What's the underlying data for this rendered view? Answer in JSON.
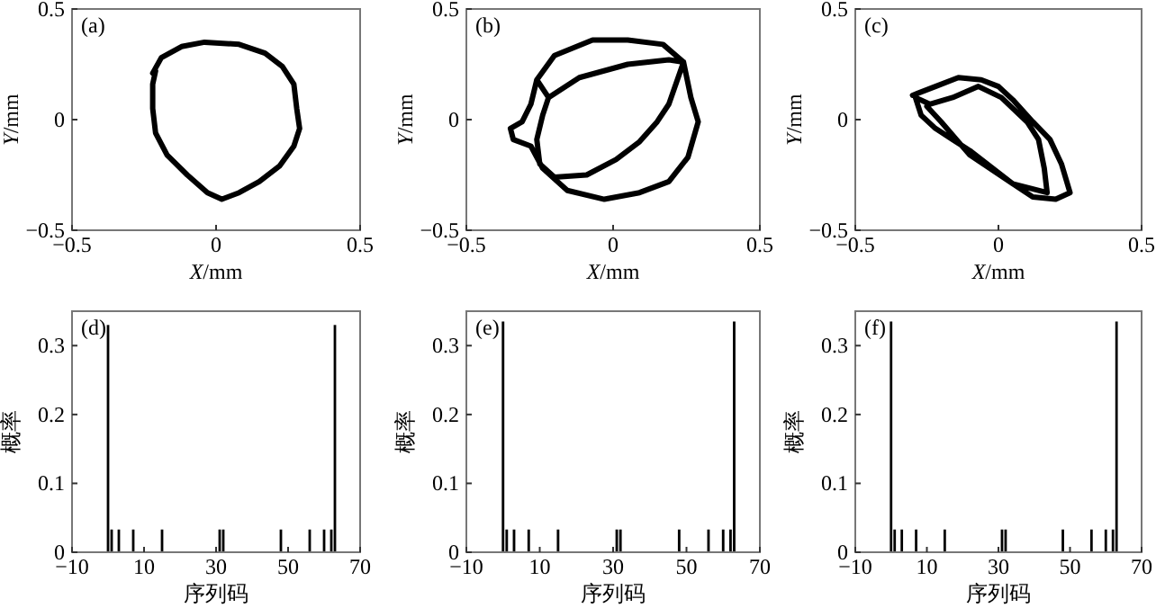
{
  "chart_data": [
    {
      "type": "line",
      "title": "(a)",
      "xlabel": "*X*/mm",
      "ylabel": "*Y*/mm",
      "xlim": [
        -0.5,
        0.5
      ],
      "ylim": [
        -0.5,
        0.5
      ],
      "xticks": [
        -0.5,
        0,
        0.5
      ],
      "yticks": [
        -0.5,
        0,
        0.5
      ],
      "series": [
        {
          "color": "#000000",
          "x": [
            -0.22,
            -0.19,
            -0.12,
            -0.04,
            0.08,
            0.17,
            0.23,
            0.27,
            0.28,
            0.29,
            0.27,
            0.22,
            0.15,
            0.08,
            0.02,
            -0.03,
            -0.1,
            -0.17,
            -0.21,
            -0.22,
            -0.22,
            -0.21
          ],
          "values": [
            0.21,
            0.28,
            0.33,
            0.35,
            0.34,
            0.3,
            0.24,
            0.16,
            0.05,
            -0.04,
            -0.12,
            -0.21,
            -0.28,
            -0.33,
            -0.36,
            -0.33,
            -0.25,
            -0.16,
            -0.06,
            0.05,
            0.16,
            0.22
          ]
        }
      ]
    },
    {
      "type": "line",
      "title": "(b)",
      "xlabel": "*X*/mm",
      "ylabel": "*Y*/mm",
      "xlim": [
        -0.5,
        0.5
      ],
      "ylim": [
        -0.5,
        0.5
      ],
      "xticks": [
        -0.5,
        0,
        0.5
      ],
      "yticks": [
        -0.5,
        0,
        0.5
      ],
      "series": [
        {
          "color": "#000000",
          "x": [
            -0.26,
            -0.2,
            -0.07,
            0.05,
            0.17,
            0.24,
            0.265,
            0.29,
            0.255,
            0.19,
            0.09,
            -0.03,
            -0.156,
            -0.24,
            -0.28,
            -0.34,
            -0.35,
            -0.31,
            -0.28,
            -0.26,
            -0.22,
            -0.115,
            0.05,
            0.19,
            0.24,
            0.19,
            0.15,
            0.09,
            0.01,
            -0.09,
            -0.2,
            -0.25,
            -0.26,
            -0.24,
            -0.22
          ],
          "values": [
            0.18,
            0.29,
            0.36,
            0.36,
            0.34,
            0.26,
            0.1,
            -0.01,
            -0.17,
            -0.28,
            -0.33,
            -0.36,
            -0.32,
            -0.22,
            -0.12,
            -0.09,
            -0.04,
            -0.01,
            0.07,
            0.18,
            0.1,
            0.19,
            0.25,
            0.27,
            0.26,
            0.07,
            -0.01,
            -0.1,
            -0.18,
            -0.25,
            -0.26,
            -0.2,
            -0.09,
            0.02,
            0.1
          ]
        }
      ]
    },
    {
      "type": "line",
      "title": "(c)",
      "xlabel": "*X*/mm",
      "ylabel": "*Y*/mm",
      "xlim": [
        -0.5,
        0.5
      ],
      "ylim": [
        -0.5,
        0.5
      ],
      "xticks": [
        -0.5,
        0,
        0.5
      ],
      "yticks": [
        -0.5,
        0,
        0.5
      ],
      "series": [
        {
          "color": "#000000",
          "x": [
            -0.3,
            -0.22,
            -0.14,
            -0.06,
            0,
            0.05,
            0.12,
            0.18,
            0.22,
            0.25,
            0.2,
            0.12,
            0.05,
            -0.03,
            -0.1,
            -0.16,
            -0.22,
            -0.27,
            -0.29,
            -0.24,
            -0.16,
            -0.07,
            0.01,
            0.1,
            0.14,
            0.16,
            0.17,
            0.05,
            -0.1,
            -0.2,
            -0.25
          ],
          "values": [
            0.11,
            0.15,
            0.19,
            0.18,
            0.15,
            0.09,
            -0.01,
            -0.09,
            -0.2,
            -0.33,
            -0.36,
            -0.35,
            -0.29,
            -0.21,
            -0.14,
            -0.09,
            -0.04,
            0.02,
            0.1,
            0.07,
            0.1,
            0.15,
            0.1,
            -0.01,
            -0.09,
            -0.22,
            -0.33,
            -0.29,
            -0.16,
            -0.01,
            0.06
          ]
        }
      ]
    },
    {
      "type": "bar",
      "title": "(d)",
      "xlabel": "序列码",
      "ylabel": "概率",
      "xlim": [
        -10,
        70
      ],
      "ylim": [
        0,
        0.35
      ],
      "xticks": [
        -10,
        10,
        30,
        50,
        70
      ],
      "yticks": [
        0,
        0.1,
        0.2,
        0.3
      ],
      "color": "#000000",
      "x": [
        0,
        1,
        3,
        7,
        15,
        31,
        32,
        48,
        56,
        60,
        62,
        63
      ],
      "values": [
        0.33,
        0.033,
        0.033,
        0.033,
        0.033,
        0.033,
        0.033,
        0.033,
        0.033,
        0.033,
        0.033,
        0.33
      ]
    },
    {
      "type": "bar",
      "title": "(e)",
      "xlabel": "序列码",
      "ylabel": "概率",
      "xlim": [
        -10,
        70
      ],
      "ylim": [
        0,
        0.35
      ],
      "xticks": [
        -10,
        10,
        30,
        50,
        70
      ],
      "yticks": [
        0,
        0.1,
        0.2,
        0.3
      ],
      "color": "#000000",
      "x": [
        0,
        1,
        3,
        7,
        15,
        31,
        32,
        48,
        56,
        60,
        62,
        63
      ],
      "values": [
        0.335,
        0.033,
        0.033,
        0.033,
        0.033,
        0.033,
        0.033,
        0.033,
        0.033,
        0.033,
        0.033,
        0.335
      ]
    },
    {
      "type": "bar",
      "title": "(f)",
      "xlabel": "序列码",
      "ylabel": "概率",
      "xlim": [
        -10,
        70
      ],
      "ylim": [
        0,
        0.35
      ],
      "xticks": [
        -10,
        10,
        30,
        50,
        70
      ],
      "yticks": [
        0,
        0.1,
        0.2,
        0.3
      ],
      "color": "#000000",
      "x": [
        0,
        1,
        3,
        7,
        15,
        31,
        32,
        48,
        56,
        60,
        62,
        63
      ],
      "values": [
        0.335,
        0.033,
        0.033,
        0.033,
        0.033,
        0.033,
        0.033,
        0.033,
        0.033,
        0.033,
        0.033,
        0.335
      ]
    }
  ]
}
